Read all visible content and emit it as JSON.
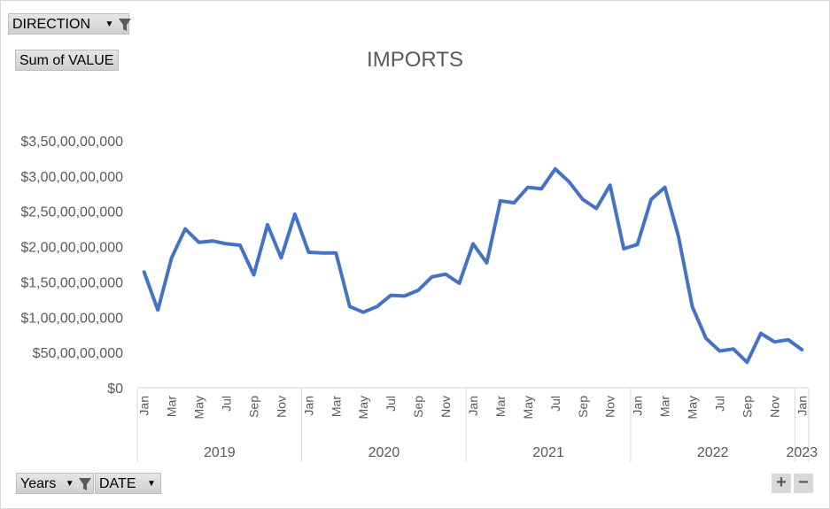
{
  "filters": {
    "direction_label": "DIRECTION",
    "value_label": "Sum of VALUE",
    "years_label": "Years",
    "date_label": "DATE"
  },
  "zoom": {
    "plus": "+",
    "minus": "−"
  },
  "chart_data": {
    "type": "line",
    "title": "IMPORTS",
    "ylim": [
      0,
      3500000000
    ],
    "y_ticks": [
      "$0",
      "$50,00,00,000",
      "$1,00,00,00,000",
      "$1,50,00,00,000",
      "$2,00,00,00,000",
      "$2,50,00,00,000",
      "$3,00,00,00,000",
      "$3,50,00,00,000"
    ],
    "groups": [
      "2019",
      "2020",
      "2021",
      "2022",
      "2023"
    ],
    "month_labels": [
      "Jan",
      "",
      "Mar",
      "",
      "May",
      "",
      "Jul",
      "",
      "Sep",
      "",
      "Nov",
      "",
      "Jan",
      "",
      "Mar",
      "",
      "May",
      "",
      "Jul",
      "",
      "Sep",
      "",
      "Nov",
      "",
      "Jan",
      "",
      "Mar",
      "",
      "May",
      "",
      "Jul",
      "",
      "Sep",
      "",
      "Nov",
      "",
      "Jan",
      "",
      "Mar",
      "",
      "May",
      "",
      "Jul",
      "",
      "Sep",
      "",
      "Nov",
      "",
      "Jan"
    ],
    "series": [
      {
        "color": "#4472c4",
        "values": [
          1640000000,
          1100000000,
          1840000000,
          2250000000,
          2060000000,
          2080000000,
          2040000000,
          2020000000,
          1600000000,
          2310000000,
          1840000000,
          2460000000,
          1920000000,
          1910000000,
          1910000000,
          1150000000,
          1070000000,
          1150000000,
          1310000000,
          1300000000,
          1380000000,
          1570000000,
          1610000000,
          1480000000,
          2040000000,
          1770000000,
          2650000000,
          2620000000,
          2840000000,
          2820000000,
          3100000000,
          2920000000,
          2670000000,
          2540000000,
          2870000000,
          1970000000,
          2030000000,
          2670000000,
          2840000000,
          2140000000,
          1150000000,
          700000000,
          520000000,
          550000000,
          360000000,
          770000000,
          650000000,
          680000000,
          540000000
        ]
      }
    ]
  }
}
